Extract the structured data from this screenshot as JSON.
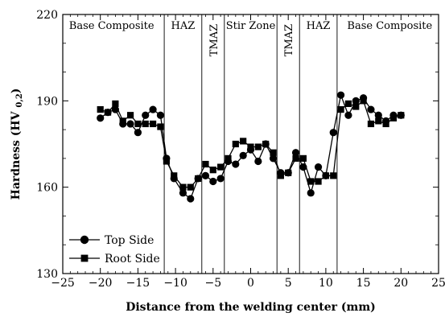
{
  "chart_data": {
    "type": "line",
    "xlabel": "Distance from the welding center (mm)",
    "ylabel": "Hardness (HV 0,2)",
    "xlim": [
      -25,
      25
    ],
    "ylim": [
      130,
      220
    ],
    "xticks": [
      -25,
      -20,
      -15,
      -10,
      -5,
      0,
      5,
      10,
      15,
      20,
      25
    ],
    "yticks": [
      130,
      160,
      190,
      220
    ],
    "grid": false,
    "legend_position": "bottom-left",
    "zone_boundaries": [
      -11.5,
      -6.5,
      -3.5,
      3.5,
      6.5,
      11.5
    ],
    "zones": [
      {
        "label": "Base Composite",
        "x_center": -18.5,
        "orientation": "horizontal"
      },
      {
        "label": "HAZ",
        "x_center": -9,
        "orientation": "horizontal"
      },
      {
        "label": "TMAZ",
        "x_center": -5,
        "orientation": "vertical"
      },
      {
        "label": "Stir Zone",
        "x_center": 0,
        "orientation": "horizontal"
      },
      {
        "label": "TMAZ",
        "x_center": 5,
        "orientation": "vertical"
      },
      {
        "label": "HAZ",
        "x_center": 9,
        "orientation": "horizontal"
      },
      {
        "label": "Base Composite",
        "x_center": 18.5,
        "orientation": "horizontal"
      }
    ],
    "series": [
      {
        "name": "Top Side",
        "marker": "circle",
        "x": [
          -20,
          -19,
          -18,
          -17,
          -16,
          -15,
          -14,
          -13,
          -12,
          -11.2,
          -10.2,
          -9,
          -8,
          -7,
          -6,
          -5,
          -4,
          -3,
          -2,
          -1,
          0,
          1,
          2,
          3,
          4,
          5,
          6,
          7,
          8,
          9,
          10,
          11,
          12,
          13,
          14,
          15,
          16,
          17,
          18,
          19,
          20
        ],
        "y": [
          184,
          186,
          187,
          182,
          182,
          179,
          185,
          187,
          185,
          170,
          163,
          158,
          156,
          163,
          164,
          162,
          163,
          169,
          168,
          171,
          173,
          169,
          175,
          170,
          165,
          165,
          172,
          167,
          158,
          167,
          164,
          179,
          192,
          185,
          190,
          191,
          187,
          185,
          183,
          185,
          185
        ],
        "color": "#000000"
      },
      {
        "name": "Root Side",
        "marker": "square",
        "x": [
          -20,
          -19,
          -18,
          -17,
          -16,
          -15,
          -14,
          -13,
          -12,
          -11.2,
          -10.2,
          -9,
          -8,
          -7,
          -6,
          -5,
          -4,
          -3,
          -2,
          -1,
          0,
          1,
          2,
          3,
          4,
          5,
          6,
          7,
          8,
          9,
          10,
          11,
          12,
          13,
          14,
          15,
          16,
          17,
          18,
          19,
          20
        ],
        "y": [
          187,
          186,
          189,
          183,
          185,
          182,
          182,
          182,
          181,
          169,
          164,
          160,
          160,
          163,
          168,
          166,
          167,
          170,
          175,
          176,
          174,
          174,
          175,
          172,
          164,
          165,
          170,
          170,
          162,
          162,
          164,
          164,
          187,
          189,
          188,
          190,
          182,
          183,
          182,
          184,
          185
        ],
        "color": "#000000"
      }
    ]
  }
}
